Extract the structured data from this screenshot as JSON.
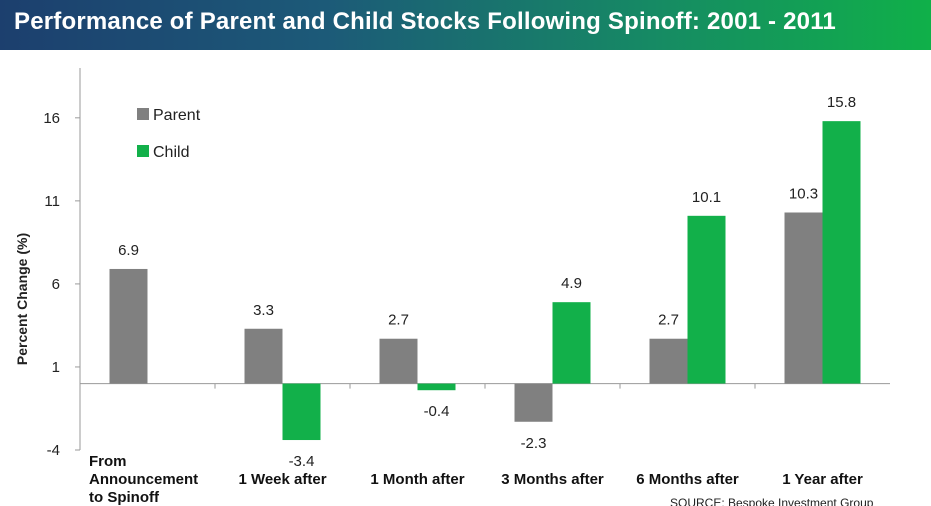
{
  "chart_data": {
    "type": "bar",
    "title": "Performance of Parent and Child Stocks Following Spinoff: 2001 - 2011",
    "ylabel": "Percent Change (%)",
    "xlabel": "",
    "ylim": [
      -4,
      19
    ],
    "yticks": [
      -4,
      1,
      6,
      11,
      16
    ],
    "categories": [
      [
        "From",
        "Announcement",
        "to Spinoff"
      ],
      [
        "1 Week after"
      ],
      [
        "1 Month after"
      ],
      [
        "3 Months after"
      ],
      [
        "6 Months after"
      ],
      [
        "1 Year after"
      ]
    ],
    "series": [
      {
        "name": "Parent",
        "color": "#808080",
        "values": [
          6.9,
          3.3,
          2.7,
          -2.3,
          2.7,
          10.3
        ]
      },
      {
        "name": "Child",
        "color": "#12b04a",
        "values": [
          null,
          -3.4,
          -0.4,
          4.9,
          10.1,
          15.8
        ]
      }
    ],
    "data_labels": {
      "Parent": [
        "6.9",
        "3.3",
        "2.7",
        "-2.3",
        "2.7",
        "10.3"
      ],
      "Child": [
        "",
        "-3.4",
        "-0.4",
        "4.9",
        "10.1",
        "15.8"
      ]
    },
    "grid": false,
    "legend_position": "top-left",
    "source": "SOURCE: Bespoke Investment Group"
  }
}
